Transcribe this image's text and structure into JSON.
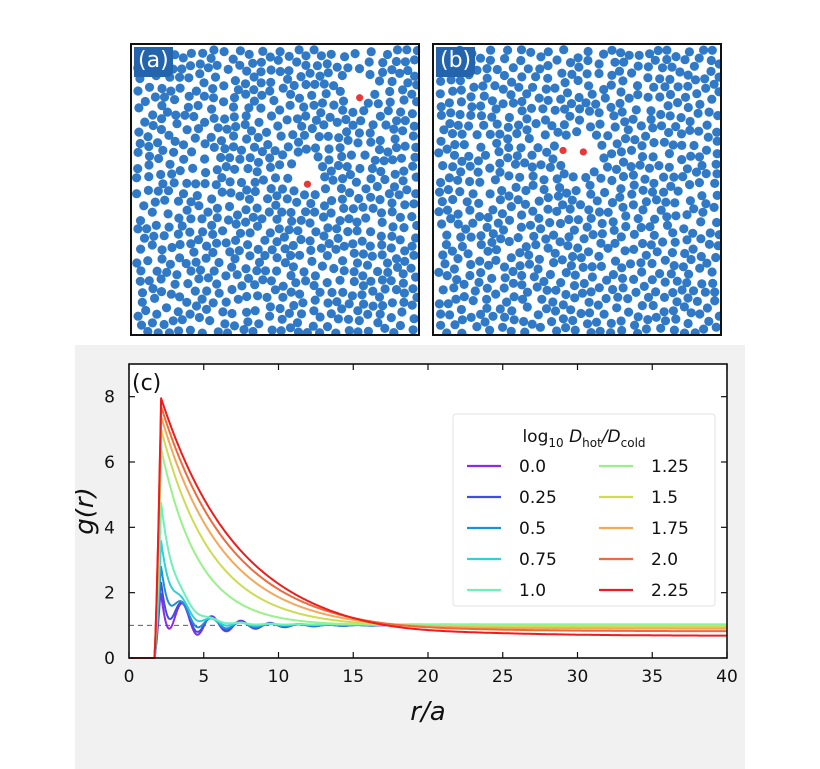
{
  "panels": [
    {
      "label": "(a)",
      "holes": [
        [
          0.78,
          0.15,
          0.06
        ],
        [
          0.6,
          0.44,
          0.06
        ]
      ],
      "red_particles": [
        [
          0.785,
          0.18
        ],
        [
          0.605,
          0.475
        ]
      ]
    },
    {
      "label": "(b)",
      "holes": [
        [
          0.5,
          0.37,
          0.075
        ]
      ],
      "red_particles": [
        [
          0.445,
          0.36
        ],
        [
          0.515,
          0.365
        ]
      ]
    }
  ],
  "colors": {
    "particle": "#2f79c6",
    "red_particle": "#e8393a",
    "tag_bg": "#2364ad"
  },
  "chart_data": {
    "type": "line",
    "panel_label": "(c)",
    "xlabel": "r/a",
    "ylabel": "g(r)",
    "xlim": [
      0,
      40
    ],
    "ylim": [
      0,
      9
    ],
    "xticks": [
      0,
      5,
      10,
      15,
      20,
      25,
      30,
      35,
      40
    ],
    "yticks": [
      0,
      2,
      4,
      6,
      8
    ],
    "reference_line": {
      "y": 1,
      "style": "dashed"
    },
    "legend": {
      "title_prefix": "log",
      "title_sub1": "10",
      "title_D": "D",
      "title_sub2": "hot",
      "title_sub3": "cold",
      "location": "upper-right",
      "columns": 2
    },
    "series": [
      {
        "name": "0.0",
        "color": "#8b2be2",
        "peak": 2.3,
        "tail": 1.0,
        "osc": 1.0
      },
      {
        "name": "0.25",
        "color": "#3f4de0",
        "peak": 2.6,
        "tail": 1.0,
        "osc": 0.85
      },
      {
        "name": "0.5",
        "color": "#1f8fd6",
        "peak": 3.0,
        "tail": 1.0,
        "osc": 0.6
      },
      {
        "name": "0.75",
        "color": "#2fd0d8",
        "peak": 3.7,
        "tail": 1.02,
        "osc": 0.35
      },
      {
        "name": "1.0",
        "color": "#6ef0b8",
        "peak": 4.8,
        "tail": 1.03,
        "osc": 0.15
      },
      {
        "name": "1.25",
        "color": "#98f28a",
        "peak": 6.4,
        "tail": 1.0,
        "osc": 0.0
      },
      {
        "name": "1.5",
        "color": "#cddb55",
        "peak": 7.0,
        "tail": 0.95,
        "osc": 0.0
      },
      {
        "name": "1.75",
        "color": "#f4a85a",
        "peak": 7.4,
        "tail": 0.9,
        "osc": 0.0
      },
      {
        "name": "2.0",
        "color": "#f06a3c",
        "peak": 7.7,
        "tail": 0.82,
        "osc": 0.0
      },
      {
        "name": "2.25",
        "color": "#ee1c1c",
        "peak": 7.95,
        "tail": 0.68,
        "osc": 0.0
      }
    ]
  }
}
